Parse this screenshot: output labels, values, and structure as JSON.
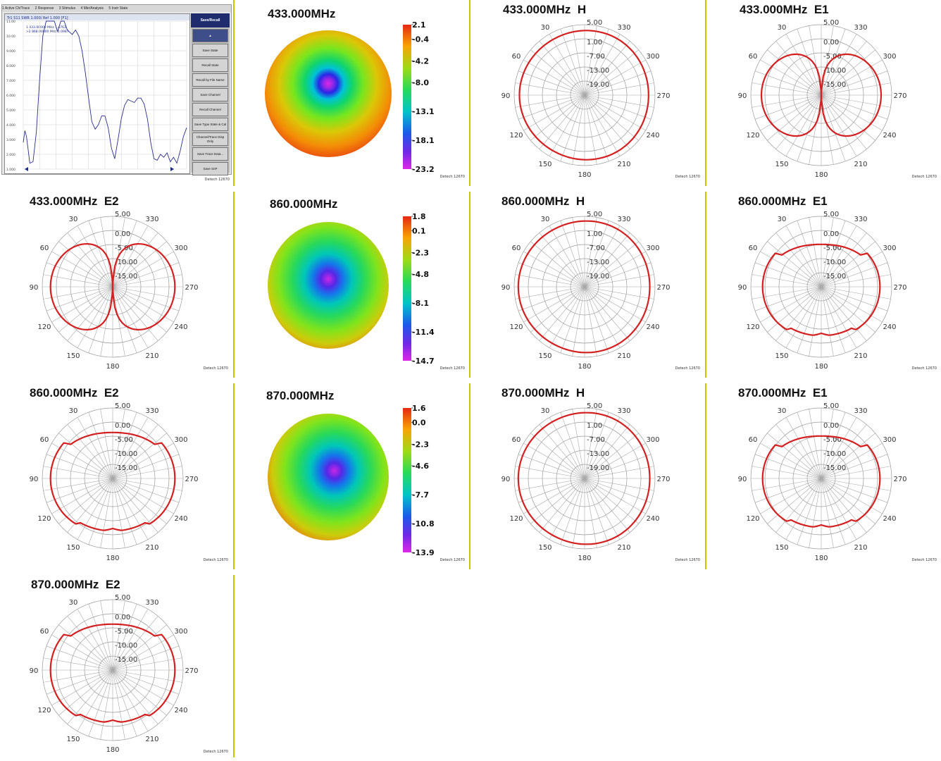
{
  "vna": {
    "menu": [
      "1 Active Ch/Trace",
      "2 Response",
      "3 Stimulus",
      "4 Mkr/Analysis",
      "5 Instr State"
    ],
    "trace_header": "Tr1 S11 SWR 1.000/ Ref 1.000 [F1]",
    "marker_lines": [
      " 1  433.00000 MHz  1.4763",
      ">2  868.00000 MHz  1.0987"
    ],
    "y_ticks": [
      "11.00",
      "10.00",
      "9.000",
      "8.000",
      "7.000",
      "6.000",
      "5.000",
      "4.000",
      "3.000",
      "2.000",
      "1.000"
    ],
    "side_header": "Save/Recall",
    "side_buttons": [
      "Save State",
      "Recall State",
      "Recall by File Name",
      "Save Channel",
      "Recall Channel",
      "Save Type State & Cal",
      "Channel/Trace Disp Only",
      "Save Trace Data...",
      "Save SnP"
    ],
    "footer": "Detech 12670",
    "trace": [
      [
        0,
        2.8
      ],
      [
        0.01,
        3.6
      ],
      [
        0.02,
        3.2
      ],
      [
        0.03,
        2.3
      ],
      [
        0.04,
        1.4
      ],
      [
        0.06,
        1.5
      ],
      [
        0.08,
        3.5
      ],
      [
        0.1,
        7
      ],
      [
        0.12,
        10
      ],
      [
        0.14,
        11.3
      ],
      [
        0.16,
        11.3
      ],
      [
        0.19,
        11
      ],
      [
        0.21,
        10.3
      ],
      [
        0.23,
        11
      ],
      [
        0.25,
        11.1
      ],
      [
        0.27,
        10.4
      ],
      [
        0.3,
        10.1
      ],
      [
        0.32,
        10.4
      ],
      [
        0.34,
        10
      ],
      [
        0.36,
        9
      ],
      [
        0.38,
        7.5
      ],
      [
        0.4,
        5.8
      ],
      [
        0.42,
        4.2
      ],
      [
        0.44,
        3.7
      ],
      [
        0.46,
        4
      ],
      [
        0.48,
        4.6
      ],
      [
        0.5,
        4.6
      ],
      [
        0.52,
        3.8
      ],
      [
        0.54,
        2.4
      ],
      [
        0.56,
        1.7
      ],
      [
        0.58,
        3
      ],
      [
        0.6,
        4.4
      ],
      [
        0.62,
        5.3
      ],
      [
        0.64,
        5.7
      ],
      [
        0.66,
        5.6
      ],
      [
        0.68,
        5.5
      ],
      [
        0.7,
        5.8
      ],
      [
        0.72,
        5.8
      ],
      [
        0.74,
        5.4
      ],
      [
        0.76,
        4.4
      ],
      [
        0.78,
        2.8
      ],
      [
        0.8,
        1.7
      ],
      [
        0.82,
        1.6
      ],
      [
        0.84,
        2
      ],
      [
        0.86,
        1.8
      ],
      [
        0.88,
        2.1
      ],
      [
        0.9,
        1.5
      ],
      [
        0.92,
        1.8
      ],
      [
        0.94,
        1.4
      ],
      [
        0.96,
        2.2
      ],
      [
        0.98,
        3.2
      ],
      [
        1,
        3.8
      ]
    ],
    "markers": [
      "1",
      "2"
    ]
  },
  "heatmaps": [
    {
      "title": "433.000MHz",
      "scale": [
        "2.1",
        "-0.4",
        "-4.2",
        "-8.0",
        "-13.1",
        "-18.1",
        "-23.2"
      ],
      "footer": "Detech 12670",
      "center": [
        0.5,
        0.42
      ],
      "edge_bias": "uniform"
    },
    {
      "title": "860.000MHz",
      "scale": [
        "1.8",
        "0.1",
        "-2.3",
        "-4.8",
        "-8.1",
        "-11.4",
        "-14.7"
      ],
      "footer": "Detech 12670",
      "center": [
        0.5,
        0.45
      ],
      "edge_bias": "left"
    },
    {
      "title": "870.000MHz",
      "scale": [
        "1.6",
        "0.0",
        "-2.3",
        "-4.6",
        "-7.7",
        "-10.8",
        "-13.9"
      ],
      "footer": "Detech 12670",
      "center": [
        0.55,
        0.45
      ],
      "edge_bias": "left"
    }
  ],
  "polar_common": {
    "rings": [
      "5.00",
      "0.00",
      "-5.00",
      "-10.00",
      "-15.00"
    ],
    "angles": [
      "30",
      "330",
      "60",
      "300",
      "90",
      "270",
      "120",
      "240",
      "150",
      "210",
      "180"
    ],
    "rmin_db": -25,
    "rmax_db": 5,
    "footer": "Detech 12670",
    "trace_color": "#d42020"
  },
  "polars": [
    {
      "title": "433.000MHz",
      "pol": "H",
      "rings": [
        "5.00",
        "1.00",
        "-7.00",
        "-13.00",
        "-19.00"
      ],
      "pattern": "omni",
      "level_db": 2.5
    },
    {
      "title": "433.000MHz",
      "pol": "E1",
      "rings": [
        "5.00",
        "0.00",
        "-5.00",
        "-10.00",
        "-15.00"
      ],
      "pattern": "fig8",
      "level_db": 0.5,
      "null_db": -25
    },
    {
      "title": "433.000MHz",
      "pol": "E2",
      "rings": [
        "5.00",
        "0.00",
        "-5.00",
        "-10.00",
        "-15.00"
      ],
      "pattern": "fig8",
      "level_db": 1.5,
      "null_db": -25
    },
    {
      "title": "860.000MHz",
      "pol": "H",
      "rings": [
        "5.00",
        "1.00",
        "-7.00",
        "-13.00",
        "-19.00"
      ],
      "pattern": "omni",
      "level_db": 3.0
    },
    {
      "title": "860.000MHz",
      "pol": "E1",
      "rings": [
        "5.00",
        "0.00",
        "-5.00",
        "-10.00",
        "-15.00"
      ],
      "pattern": "cardio",
      "level_db": 0.0,
      "null_db": -9
    },
    {
      "title": "860.000MHz",
      "pol": "E2",
      "rings": [
        "5.00",
        "0.00",
        "-5.00",
        "-10.00",
        "-15.00"
      ],
      "pattern": "cardio",
      "level_db": 1.5,
      "null_db": -7
    },
    {
      "title": "870.000MHz",
      "pol": "H",
      "rings": [
        "5.00",
        "1.00",
        "-7.00",
        "-13.00",
        "-19.00"
      ],
      "pattern": "omni",
      "level_db": 3.0
    },
    {
      "title": "870.000MHz",
      "pol": "E1",
      "rings": [
        "5.00",
        "0.00",
        "-5.00",
        "-10.00",
        "-15.00"
      ],
      "pattern": "cardio",
      "level_db": 0.0,
      "null_db": -9
    },
    {
      "title": "870.000MHz",
      "pol": "E2",
      "rings": [
        "5.00",
        "0.00",
        "-5.00",
        "-10.00",
        "-15.00"
      ],
      "pattern": "cardio",
      "level_db": 1.5,
      "null_db": -7
    }
  ],
  "chart_data": [
    {
      "type": "line",
      "title": "",
      "xlabel": "",
      "ylabel": "SWR",
      "ylim": [
        1,
        11
      ],
      "series": [
        {
          "name": "Tr1 S11",
          "values": "see vna.trace"
        }
      ]
    },
    {
      "type": "heatmap",
      "title": "433.000MHz",
      "colorbar": [
        2.1,
        -0.4,
        -4.2,
        -8.0,
        -13.1,
        -18.1,
        -23.2
      ]
    },
    {
      "type": "heatmap",
      "title": "860.000MHz",
      "colorbar": [
        1.8,
        0.1,
        -2.3,
        -4.8,
        -8.1,
        -11.4,
        -14.7
      ]
    },
    {
      "type": "heatmap",
      "title": "870.000MHz",
      "colorbar": [
        1.6,
        0.0,
        -2.3,
        -4.6,
        -7.7,
        -10.8,
        -13.9
      ]
    },
    {
      "type": "polar",
      "title": "433.000MHz H",
      "pattern": "omnidirectional"
    },
    {
      "type": "polar",
      "title": "433.000MHz E1",
      "pattern": "figure-eight"
    },
    {
      "type": "polar",
      "title": "433.000MHz E2",
      "pattern": "figure-eight"
    },
    {
      "type": "polar",
      "title": "860.000MHz H",
      "pattern": "omnidirectional"
    },
    {
      "type": "polar",
      "title": "860.000MHz E1",
      "pattern": "cardioid"
    },
    {
      "type": "polar",
      "title": "860.000MHz E2",
      "pattern": "cardioid"
    },
    {
      "type": "polar",
      "title": "870.000MHz H",
      "pattern": "omnidirectional"
    },
    {
      "type": "polar",
      "title": "870.000MHz E1",
      "pattern": "cardioid"
    },
    {
      "type": "polar",
      "title": "870.000MHz E2",
      "pattern": "cardioid"
    }
  ]
}
